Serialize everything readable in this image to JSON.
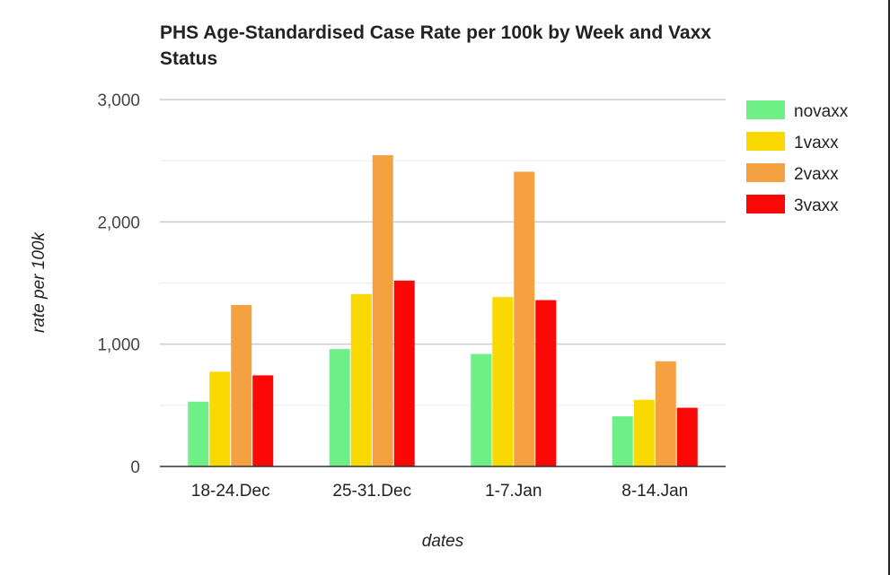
{
  "chart_data": {
    "type": "bar",
    "title": "PHS Age-Standardised Case Rate per 100k by Week and Vaxx Status",
    "xlabel": "dates",
    "ylabel": "rate per 100k",
    "categories": [
      "18-24.Dec",
      "25-31.Dec",
      "1-7.Jan",
      "8-14.Jan"
    ],
    "series": [
      {
        "name": "novaxx",
        "color": "#6ef087",
        "values": [
          530,
          960,
          920,
          410
        ]
      },
      {
        "name": "1vaxx",
        "color": "#f9d900",
        "values": [
          775,
          1410,
          1385,
          545
        ]
      },
      {
        "name": "2vaxx",
        "color": "#f4a142",
        "values": [
          1320,
          2545,
          2410,
          860
        ]
      },
      {
        "name": "3vaxx",
        "color": "#fb0706",
        "values": [
          745,
          1520,
          1360,
          480
        ]
      }
    ],
    "ylim": [
      0,
      3000
    ],
    "yticks": [
      0,
      1000,
      2000,
      3000
    ],
    "ytick_labels": [
      "0",
      "1,000",
      "2,000",
      "3,000"
    ],
    "grid": true,
    "legend": "right"
  }
}
